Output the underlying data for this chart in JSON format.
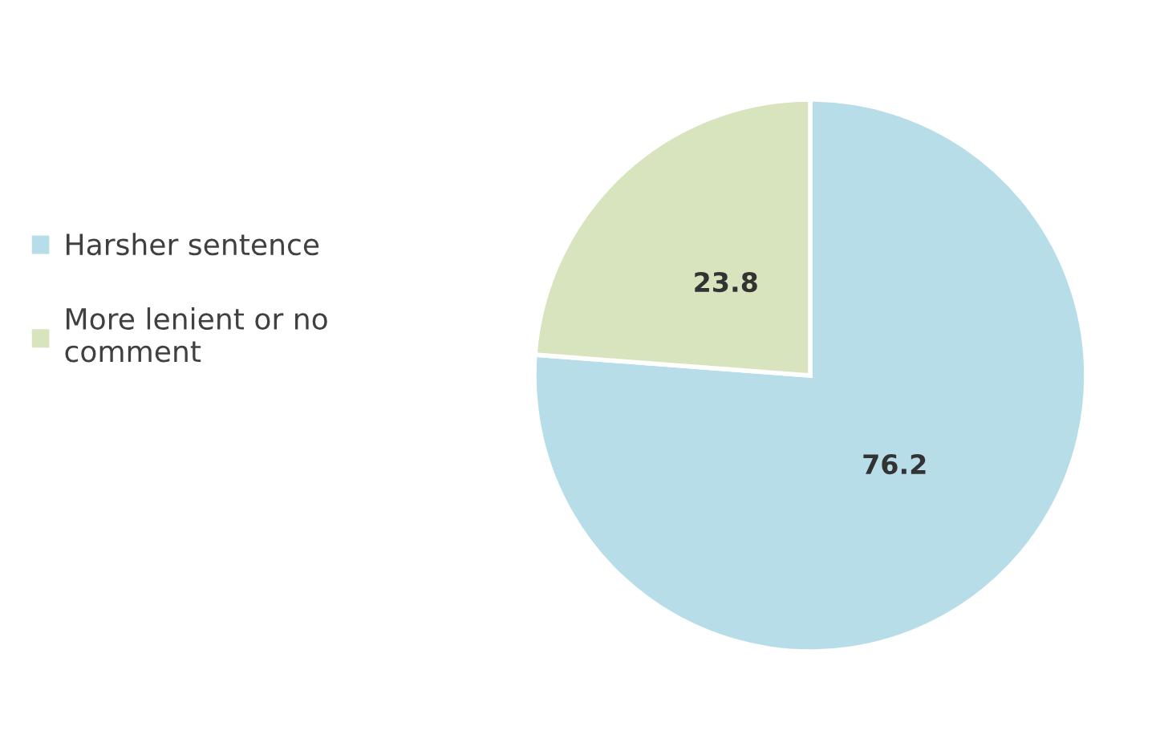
{
  "chart_data": {
    "type": "pie",
    "categories": [
      "Harsher sentence",
      "More lenient or no\ncomment"
    ],
    "values": [
      76.2,
      23.8
    ],
    "colors": [
      "#b7dde8",
      "#d7e4bd"
    ],
    "data_labels": true,
    "legend": "left"
  }
}
